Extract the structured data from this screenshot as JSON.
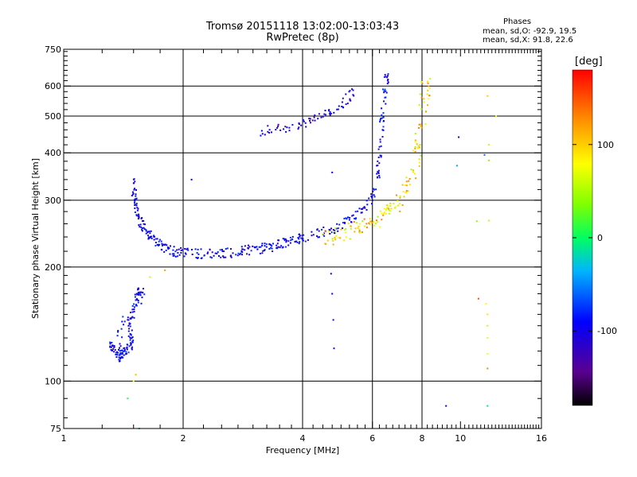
{
  "chart_data": {
    "type": "scatter",
    "title_line1": "Tromsø 20151118 13:02:00-13:03:43",
    "title_line2": "RwPretec (8p)",
    "xlabel": "Frequency [MHz]",
    "ylabel": "Stationary phase Virtual Height [km]",
    "x_scale": "log",
    "y_scale": "log",
    "xlim": [
      1,
      16
    ],
    "ylim": [
      75,
      750
    ],
    "x_ticks": [
      1,
      2,
      4,
      6,
      8,
      10,
      16
    ],
    "y_ticks": [
      75,
      100,
      200,
      300,
      400,
      500,
      600,
      750
    ],
    "x_gridlines": [
      2,
      4,
      6,
      8
    ],
    "y_gridlines": [
      100,
      200,
      300,
      400,
      500,
      600
    ],
    "grid": true,
    "phase_stats": {
      "heading": "Phases",
      "o_line": "mean, sd,O: -92.9, 19.5",
      "x_line": "mean, sd,X:  91.8, 22.6"
    },
    "colorbar": {
      "unit": "[deg]",
      "range": [
        -180,
        180
      ],
      "ticks": [
        100,
        0,
        -100
      ],
      "colormap": "rainbow (black-purple-blue-cyan-green-yellow-red)"
    },
    "series": [
      {
        "kind": "low_trace_o",
        "phase_deg": -95,
        "points": [
          [
            1.31,
            124
          ],
          [
            1.32,
            122
          ],
          [
            1.34,
            121
          ],
          [
            1.36,
            118
          ],
          [
            1.38,
            116
          ],
          [
            1.4,
            117
          ],
          [
            1.42,
            119
          ],
          [
            1.44,
            120
          ],
          [
            1.46,
            123
          ],
          [
            1.48,
            125
          ],
          [
            1.49,
            128
          ],
          [
            1.47,
            133
          ],
          [
            1.46,
            140
          ],
          [
            1.48,
            148
          ],
          [
            1.5,
            154
          ],
          [
            1.52,
            160
          ],
          [
            1.53,
            166
          ],
          [
            1.55,
            170
          ],
          [
            1.57,
            172
          ],
          [
            1.59,
            169
          ],
          [
            1.37,
            136
          ],
          [
            1.4,
            119
          ]
        ]
      },
      {
        "kind": "f2_o_trace",
        "phase_deg": -95,
        "points": [
          [
            1.5,
            335
          ],
          [
            1.5,
            320
          ],
          [
            1.51,
            305
          ],
          [
            1.52,
            292
          ],
          [
            1.53,
            280
          ],
          [
            1.55,
            270
          ],
          [
            1.57,
            262
          ],
          [
            1.59,
            255
          ],
          [
            1.62,
            248
          ],
          [
            1.65,
            242
          ],
          [
            1.68,
            237
          ],
          [
            1.72,
            232
          ],
          [
            1.76,
            228
          ],
          [
            1.8,
            225
          ],
          [
            1.85,
            222
          ],
          [
            1.9,
            220
          ],
          [
            1.95,
            219
          ],
          [
            2.0,
            218
          ],
          [
            2.1,
            217
          ],
          [
            2.2,
            217
          ],
          [
            2.3,
            217
          ],
          [
            2.4,
            217
          ],
          [
            2.5,
            218
          ],
          [
            2.6,
            218
          ],
          [
            2.7,
            219
          ],
          [
            2.8,
            220
          ],
          [
            2.9,
            221
          ],
          [
            3.0,
            222
          ],
          [
            3.1,
            223
          ],
          [
            3.2,
            224
          ],
          [
            3.3,
            226
          ],
          [
            3.4,
            227
          ],
          [
            3.5,
            229
          ],
          [
            3.6,
            231
          ],
          [
            3.7,
            233
          ],
          [
            3.8,
            235
          ],
          [
            3.9,
            237
          ],
          [
            4.0,
            239
          ],
          [
            4.2,
            242
          ],
          [
            4.4,
            245
          ],
          [
            4.6,
            249
          ],
          [
            4.8,
            253
          ],
          [
            5.0,
            258
          ],
          [
            5.2,
            264
          ],
          [
            5.4,
            271
          ],
          [
            5.6,
            280
          ],
          [
            5.8,
            292
          ],
          [
            6.0,
            310
          ],
          [
            6.1,
            330
          ],
          [
            6.2,
            360
          ],
          [
            6.25,
            390
          ],
          [
            6.3,
            430
          ],
          [
            6.35,
            480
          ],
          [
            6.4,
            530
          ],
          [
            6.45,
            580
          ],
          [
            6.5,
            630
          ]
        ]
      },
      {
        "kind": "f2_x_trace",
        "phase_deg": 90,
        "points": [
          [
            4.5,
            238
          ],
          [
            4.7,
            240
          ],
          [
            4.9,
            243
          ],
          [
            5.1,
            246
          ],
          [
            5.3,
            249
          ],
          [
            5.5,
            252
          ],
          [
            5.7,
            256
          ],
          [
            5.9,
            260
          ],
          [
            6.1,
            264
          ],
          [
            6.3,
            269
          ],
          [
            6.5,
            275
          ],
          [
            6.7,
            282
          ],
          [
            6.9,
            292
          ],
          [
            7.1,
            305
          ],
          [
            7.3,
            322
          ],
          [
            7.5,
            345
          ],
          [
            7.7,
            375
          ],
          [
            7.8,
            410
          ],
          [
            7.9,
            450
          ],
          [
            8.0,
            500
          ],
          [
            8.1,
            550
          ],
          [
            8.2,
            600
          ]
        ]
      },
      {
        "kind": "upper_branch",
        "phase_deg": -105,
        "points": [
          [
            3.1,
            452
          ],
          [
            3.2,
            455
          ],
          [
            3.3,
            458
          ],
          [
            3.4,
            461
          ],
          [
            3.5,
            463
          ],
          [
            3.6,
            466
          ],
          [
            3.7,
            469
          ],
          [
            3.8,
            472
          ],
          [
            3.9,
            475
          ],
          [
            4.0,
            478
          ],
          [
            4.1,
            482
          ],
          [
            4.2,
            486
          ],
          [
            4.3,
            490
          ],
          [
            4.4,
            494
          ],
          [
            4.5,
            499
          ],
          [
            4.6,
            504
          ],
          [
            4.7,
            510
          ],
          [
            4.8,
            518
          ],
          [
            4.9,
            528
          ],
          [
            5.0,
            540
          ],
          [
            5.1,
            552
          ],
          [
            5.2,
            562
          ],
          [
            5.3,
            570
          ],
          [
            5.4,
            577
          ]
        ]
      },
      {
        "kind": "isolated_points",
        "points": [
          [
            1.45,
            90
          ],
          [
            1.5,
            100
          ],
          [
            1.52,
            104
          ],
          [
            1.55,
            75
          ],
          [
            1.65,
            188
          ],
          [
            1.8,
            196
          ],
          [
            2.1,
            340
          ],
          [
            4.72,
            192
          ],
          [
            4.75,
            170
          ],
          [
            4.78,
            145
          ],
          [
            4.8,
            122
          ],
          [
            4.75,
            355
          ],
          [
            9.2,
            86
          ],
          [
            9.8,
            370
          ],
          [
            9.9,
            440
          ],
          [
            11.0,
            264
          ],
          [
            11.1,
            165
          ],
          [
            11.5,
            395
          ],
          [
            11.6,
            160
          ],
          [
            11.7,
            150
          ],
          [
            11.7,
            140
          ],
          [
            11.7,
            130
          ],
          [
            11.7,
            118
          ],
          [
            11.7,
            108
          ],
          [
            11.7,
            86
          ],
          [
            11.8,
            420
          ],
          [
            11.8,
            382
          ],
          [
            11.8,
            265
          ],
          [
            11.7,
            565
          ],
          [
            12.3,
            500
          ]
        ]
      }
    ]
  }
}
